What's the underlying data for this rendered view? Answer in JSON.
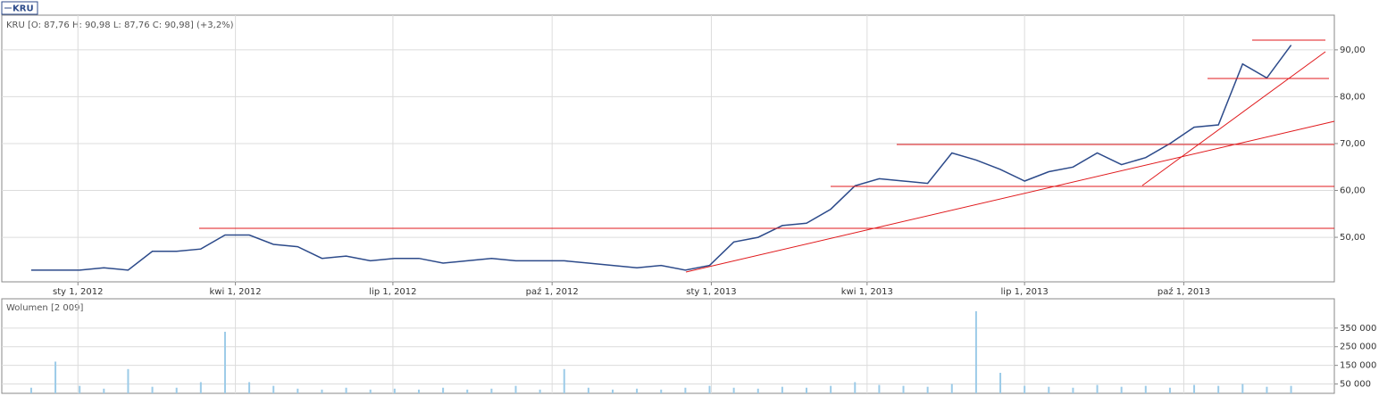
{
  "chart_data": [
    {
      "type": "line",
      "title": "KRU [O: 87,76  H: 90,98  L: 87,76  C: 90,98] (+3,2%)",
      "x": [
        "2011-12-05",
        "2011-12-19",
        "2012-01-02",
        "2012-01-16",
        "2012-01-30",
        "2012-02-13",
        "2012-02-27",
        "2012-03-12",
        "2012-03-26",
        "2012-04-09",
        "2012-04-23",
        "2012-05-07",
        "2012-05-21",
        "2012-06-04",
        "2012-06-18",
        "2012-07-02",
        "2012-07-16",
        "2012-07-30",
        "2012-08-13",
        "2012-08-27",
        "2012-09-10",
        "2012-09-24",
        "2012-10-08",
        "2012-10-22",
        "2012-11-05",
        "2012-11-19",
        "2012-12-03",
        "2012-12-17",
        "2012-12-31",
        "2013-01-14",
        "2013-01-28",
        "2013-02-11",
        "2013-02-25",
        "2013-03-11",
        "2013-03-25",
        "2013-04-08",
        "2013-04-22",
        "2013-05-06",
        "2013-05-20",
        "2013-06-03",
        "2013-06-17",
        "2013-07-01",
        "2013-07-15",
        "2013-07-29",
        "2013-08-12",
        "2013-08-26",
        "2013-09-09",
        "2013-09-23",
        "2013-10-07",
        "2013-10-21",
        "2013-11-04",
        "2013-11-18",
        "2013-12-02"
      ],
      "series": [
        {
          "name": "KRU",
          "color": "#2c4a8a",
          "values": [
            43,
            43,
            43,
            43.5,
            43,
            47,
            47,
            47.5,
            50.5,
            50.5,
            48.5,
            48,
            45.5,
            46,
            45,
            45.5,
            45.5,
            44.5,
            45,
            45.5,
            45,
            45,
            45,
            44.5,
            44,
            43.5,
            44,
            43,
            44,
            49,
            50,
            52.5,
            53,
            56,
            61,
            62.5,
            62,
            61.5,
            68,
            66.5,
            64.5,
            62,
            64,
            65,
            68,
            65.5,
            67,
            70,
            73.5,
            74,
            87,
            84,
            91
          ]
        }
      ],
      "xlim": [
        "2011-11-18",
        "2013-12-27"
      ],
      "xticks": [
        {
          "value": "2012-01-01",
          "label": "sty 1, 2012"
        },
        {
          "value": "2012-04-01",
          "label": "kwi 1, 2012"
        },
        {
          "value": "2012-07-01",
          "label": "lip 1, 2012"
        },
        {
          "value": "2012-10-01",
          "label": "paź 1, 2012"
        },
        {
          "value": "2013-01-01",
          "label": "sty 1, 2013"
        },
        {
          "value": "2013-04-01",
          "label": "kwi 1, 2013"
        },
        {
          "value": "2013-07-01",
          "label": "lip 1, 2013"
        },
        {
          "value": "2013-10-01",
          "label": "paź 1, 2013"
        }
      ],
      "ylim": [
        40.5,
        97.4
      ],
      "yticks": [
        {
          "value": 50,
          "label": "50,00"
        },
        {
          "value": 60,
          "label": "60,00"
        },
        {
          "value": 70,
          "label": "70,00"
        },
        {
          "value": 80,
          "label": "80,00"
        },
        {
          "value": 90,
          "label": "90,00"
        }
      ],
      "grid": true
    },
    {
      "type": "bar",
      "title": "Wolumen [2 009]",
      "x": [
        "2011-12-05",
        "2011-12-19",
        "2012-01-02",
        "2012-01-16",
        "2012-01-30",
        "2012-02-13",
        "2012-02-27",
        "2012-03-12",
        "2012-03-26",
        "2012-04-09",
        "2012-04-23",
        "2012-05-07",
        "2012-05-21",
        "2012-06-04",
        "2012-06-18",
        "2012-07-02",
        "2012-07-16",
        "2012-07-30",
        "2012-08-13",
        "2012-08-27",
        "2012-09-10",
        "2012-09-24",
        "2012-10-08",
        "2012-10-22",
        "2012-11-05",
        "2012-11-19",
        "2012-12-03",
        "2012-12-17",
        "2012-12-31",
        "2013-01-14",
        "2013-01-28",
        "2013-02-11",
        "2013-02-25",
        "2013-03-11",
        "2013-03-25",
        "2013-04-08",
        "2013-04-22",
        "2013-05-06",
        "2013-05-20",
        "2013-06-03",
        "2013-06-17",
        "2013-07-01",
        "2013-07-15",
        "2013-07-29",
        "2013-08-12",
        "2013-08-26",
        "2013-09-09",
        "2013-09-23",
        "2013-10-07",
        "2013-10-21",
        "2013-11-04",
        "2013-11-18",
        "2013-12-02"
      ],
      "series": [
        {
          "name": "Wolumen",
          "color": "#9ccbe8",
          "values": [
            30000,
            170000,
            40000,
            25000,
            130000,
            35000,
            30000,
            60000,
            330000,
            60000,
            40000,
            25000,
            20000,
            30000,
            20000,
            25000,
            20000,
            30000,
            20000,
            25000,
            40000,
            20000,
            130000,
            30000,
            20000,
            25000,
            20000,
            30000,
            40000,
            30000,
            25000,
            35000,
            30000,
            40000,
            60000,
            45000,
            40000,
            35000,
            50000,
            440000,
            110000,
            40000,
            35000,
            30000,
            45000,
            35000,
            40000,
            30000,
            45000,
            40000,
            50000,
            35000,
            40000
          ]
        }
      ],
      "ylim": [
        0,
        507000
      ],
      "yticks": [
        {
          "value": 50000,
          "label": "50 000"
        },
        {
          "value": 150000,
          "label": "150 000"
        },
        {
          "value": 250000,
          "label": "250 000"
        },
        {
          "value": 350000,
          "label": "350 000"
        }
      ],
      "grid": true
    }
  ]
}
